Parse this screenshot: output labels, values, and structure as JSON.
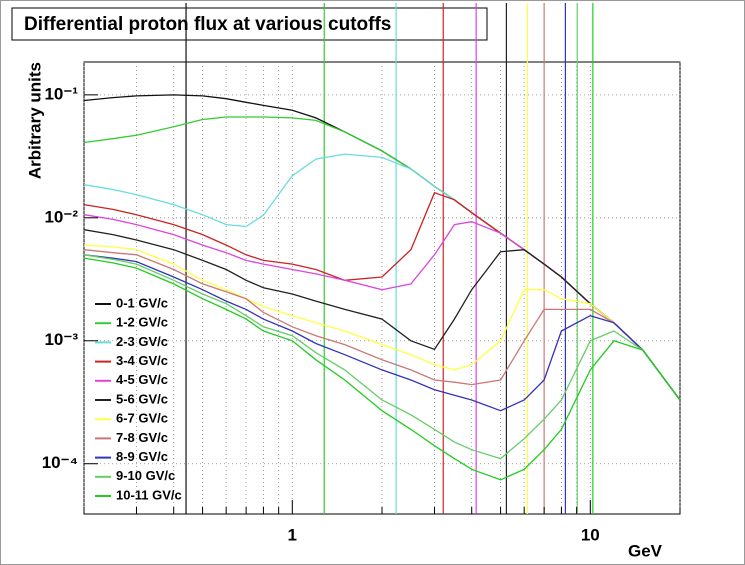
{
  "chart_data": {
    "type": "line",
    "title": "Differential proton flux at various cutoffs",
    "ylabel": "Arbitrary units",
    "xlabel": "GeV",
    "xscale": "log",
    "yscale": "log",
    "grid": true,
    "legend": "lower left",
    "xlim": [
      0.2,
      20
    ],
    "ylim": [
      3.9e-05,
      0.185
    ],
    "xticks": [
      1,
      10
    ],
    "xminor": [
      0.2,
      0.3,
      0.4,
      0.5,
      0.6,
      0.7,
      0.8,
      0.9,
      2,
      3,
      4,
      5,
      6,
      7,
      8,
      9,
      20
    ],
    "yticks": [
      {
        "value": 0.1,
        "label": "10⁻¹"
      },
      {
        "value": 0.01,
        "label": "10⁻²"
      },
      {
        "value": 0.001,
        "label": "10⁻³"
      },
      {
        "value": 0.0001,
        "label": "10⁻⁴"
      }
    ],
    "x": [
      0.2,
      0.25,
      0.3,
      0.4,
      0.5,
      0.6,
      0.7,
      0.8,
      1,
      1.2,
      1.5,
      2,
      2.5,
      3,
      3.5,
      4,
      5,
      6,
      7,
      8,
      10,
      12,
      15,
      20
    ],
    "series": [
      {
        "name": "0-1 GV/c",
        "color": "#111111",
        "cutoff": 0.44,
        "values": [
          0.09,
          0.095,
          0.098,
          0.1,
          0.098,
          0.093,
          0.087,
          0.082,
          0.075,
          0.065,
          0.05,
          0.035,
          0.025,
          0.018,
          0.014,
          0.011,
          0.0075,
          0.0055,
          0.0042,
          0.0033,
          0.002,
          0.0014,
          0.00084,
          0.00033
        ]
      },
      {
        "name": "1-2 GV/c",
        "color": "#33cc33",
        "cutoff": 1.28,
        "values": [
          0.041,
          0.044,
          0.047,
          0.055,
          0.063,
          0.066,
          0.066,
          0.066,
          0.065,
          0.062,
          0.05,
          0.035,
          0.025,
          0.018,
          0.014,
          0.011,
          0.0075,
          0.0055,
          0.0042,
          0.0033,
          0.002,
          0.0014,
          0.00084,
          0.00033
        ]
      },
      {
        "name": "2-3 GV/c",
        "color": "#66dddd",
        "cutoff": 2.23,
        "values": [
          0.0186,
          0.017,
          0.0154,
          0.0128,
          0.0106,
          0.0088,
          0.0085,
          0.0105,
          0.022,
          0.03,
          0.033,
          0.031,
          0.025,
          0.018,
          0.014,
          0.011,
          0.0075,
          0.0055,
          0.0042,
          0.0033,
          0.002,
          0.0014,
          0.00084,
          0.00033
        ]
      },
      {
        "name": "3-4 GV/c",
        "color": "#cc2222",
        "cutoff": 3.21,
        "values": [
          0.0128,
          0.0117,
          0.0106,
          0.0088,
          0.0073,
          0.006,
          0.005,
          0.0045,
          0.0042,
          0.0038,
          0.0031,
          0.0033,
          0.0055,
          0.016,
          0.014,
          0.011,
          0.0075,
          0.0055,
          0.0042,
          0.0033,
          0.002,
          0.0014,
          0.00084,
          0.00033
        ]
      },
      {
        "name": "4-5 GV/c",
        "color": "#dd44dd",
        "cutoff": 4.14,
        "values": [
          0.0106,
          0.0097,
          0.0088,
          0.0073,
          0.006,
          0.0052,
          0.0045,
          0.0042,
          0.0038,
          0.0035,
          0.0031,
          0.0026,
          0.0029,
          0.005,
          0.0088,
          0.0093,
          0.0075,
          0.0055,
          0.0042,
          0.0033,
          0.002,
          0.0014,
          0.00084,
          0.00033
        ]
      },
      {
        "name": "5-6 GV/c",
        "color": "#222222",
        "cutoff": 5.23,
        "values": [
          0.008,
          0.0073,
          0.0066,
          0.0055,
          0.0045,
          0.0038,
          0.0031,
          0.0027,
          0.0024,
          0.0021,
          0.0018,
          0.0015,
          0.001,
          0.00085,
          0.0015,
          0.0026,
          0.0053,
          0.0055,
          0.0042,
          0.0033,
          0.002,
          0.0014,
          0.00084,
          0.00033
        ]
      },
      {
        "name": "6-7 GV/c",
        "color": "#ffff44",
        "cutoff": 6.15,
        "values": [
          0.006,
          0.0058,
          0.0055,
          0.0042,
          0.0031,
          0.0026,
          0.0022,
          0.0019,
          0.0016,
          0.0014,
          0.0012,
          0.00093,
          0.00077,
          0.00064,
          0.00058,
          0.00064,
          0.001,
          0.0026,
          0.0026,
          0.0022,
          0.002,
          0.0014,
          0.00084,
          0.00033
        ]
      },
      {
        "name": "7-8 GV/c",
        "color": "#cc7777",
        "cutoff": 7.0,
        "values": [
          0.0055,
          0.0052,
          0.005,
          0.0038,
          0.0029,
          0.0025,
          0.0022,
          0.0017,
          0.0013,
          0.0011,
          0.00093,
          0.0007,
          0.00058,
          0.00048,
          0.00046,
          0.00044,
          0.00048,
          0.001,
          0.0018,
          0.0018,
          0.0018,
          0.0014,
          0.00084,
          0.00033
        ]
      },
      {
        "name": "8-9 GV/c",
        "color": "#3333bb",
        "cutoff": 8.25,
        "values": [
          0.005,
          0.0047,
          0.0044,
          0.0033,
          0.0026,
          0.0021,
          0.0018,
          0.0015,
          0.0012,
          0.00095,
          0.00077,
          0.00058,
          0.00048,
          0.0004,
          0.00036,
          0.00033,
          0.00027,
          0.00033,
          0.00048,
          0.0012,
          0.0016,
          0.0014,
          0.00084,
          0.00033
        ]
      },
      {
        "name": "9-10 GV/c",
        "color": "#66cc66",
        "cutoff": 9.04,
        "values": [
          0.005,
          0.0046,
          0.0042,
          0.0031,
          0.0024,
          0.002,
          0.0016,
          0.0013,
          0.0011,
          0.0008,
          0.00058,
          0.00033,
          0.00025,
          0.00019,
          0.00015,
          0.00013,
          0.00011,
          0.00016,
          0.00023,
          0.00033,
          0.001,
          0.0012,
          0.00084,
          0.00033
        ]
      },
      {
        "name": "10-11 GV/c",
        "color": "#22cc22",
        "cutoff": 10.2,
        "values": [
          0.0047,
          0.0043,
          0.0039,
          0.0029,
          0.0022,
          0.0018,
          0.0015,
          0.0012,
          0.001,
          0.0007,
          0.00048,
          0.00027,
          0.00019,
          0.00014,
          0.00011,
          9e-05,
          7.4e-05,
          9e-05,
          0.00013,
          0.00019,
          0.00058,
          0.001,
          0.00084,
          0.00033
        ]
      }
    ]
  }
}
